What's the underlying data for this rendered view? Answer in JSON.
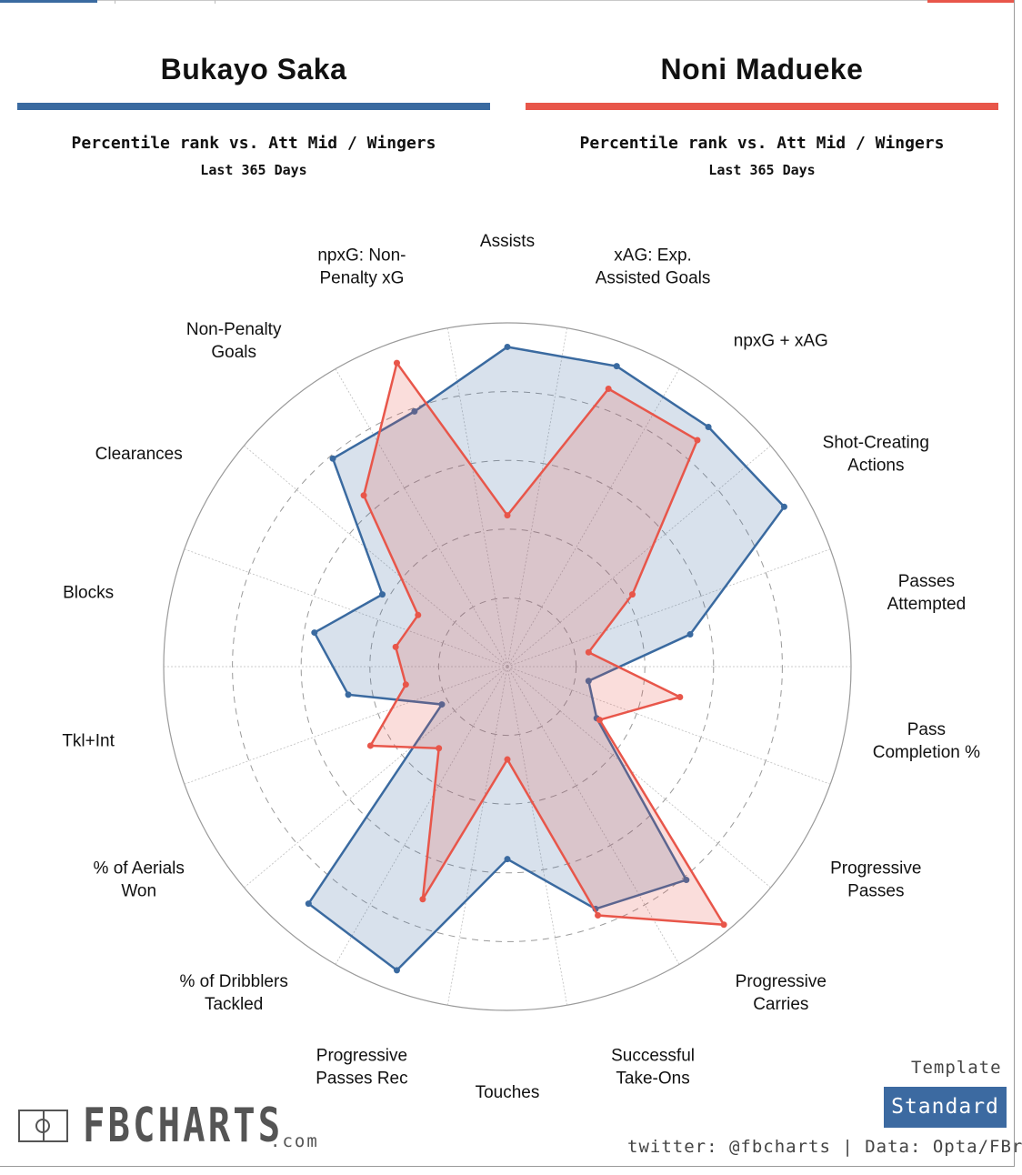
{
  "players": [
    {
      "name": "Bukayo Saka",
      "color": "#3a6aa0",
      "subtitle": "Percentile rank vs. Att Mid / Wingers",
      "period": "Last 365 Days"
    },
    {
      "name": "Noni Madueke",
      "color": "#e8564a",
      "subtitle": "Percentile rank vs. Att Mid / Wingers",
      "period": "Last 365 Days"
    }
  ],
  "chart_data": {
    "type": "radar",
    "scale": [
      0,
      100
    ],
    "categories": [
      "Passes Attempted",
      "Pass Completion %",
      "Progressive Passes",
      "Progressive Carries",
      "Successful Take-Ons",
      "Touches",
      "Progressive Passes Rec",
      "% of Dribblers Tackled",
      "% of Aerials Won",
      "Tkl+Int",
      "Blocks",
      "Clearances",
      "Non-Penalty Goals",
      "npxG: Non-Penalty xG",
      "Assists",
      "xAG: Exp. Assisted Goals",
      "npxG + xAG",
      "Shot-Creating Actions"
    ],
    "label_lines": [
      [
        "Passes",
        "Attempted"
      ],
      [
        "Pass",
        "Completion %"
      ],
      [
        "Progressive",
        "Passes"
      ],
      [
        "Progressive",
        "Carries"
      ],
      [
        "Successful",
        "Take-Ons"
      ],
      [
        "Touches"
      ],
      [
        "Progressive",
        "Passes Rec"
      ],
      [
        "% of Dribblers",
        "Tackled"
      ],
      [
        "% of Aerials",
        "Won"
      ],
      [
        "Tkl+Int"
      ],
      [
        "Blocks"
      ],
      [
        "Clearances"
      ],
      [
        "Non-Penalty",
        "Goals"
      ],
      [
        "npxG: Non-",
        "Penalty xG"
      ],
      [
        "Assists"
      ],
      [
        "xAG: Exp.",
        "Assisted Goals"
      ],
      [
        "npxG + xAG"
      ],
      [
        "Shot-Creating",
        "Actions"
      ]
    ],
    "series": [
      {
        "name": "Bukayo Saka",
        "color": "#3a6aa0",
        "fill": "rgba(58,106,160,0.2)",
        "values": [
          54,
          24,
          30,
          81,
          75,
          56,
          94,
          90,
          22,
          47,
          57,
          42,
          79,
          79,
          93,
          93,
          91,
          93
        ]
      },
      {
        "name": "Noni Madueke",
        "color": "#e8564a",
        "fill": "rgba(232,86,74,0.2)",
        "values": [
          24,
          51,
          31,
          98,
          77,
          27,
          72,
          31,
          46,
          30,
          33,
          30,
          65,
          94,
          44,
          86,
          86,
          42
        ]
      }
    ]
  },
  "template": {
    "label": "Template",
    "value": "Standard"
  },
  "credit": "twitter: @fbcharts | Data: Opta/FBref",
  "logo": {
    "text": "FBCHARTS",
    "domain": ".com"
  }
}
